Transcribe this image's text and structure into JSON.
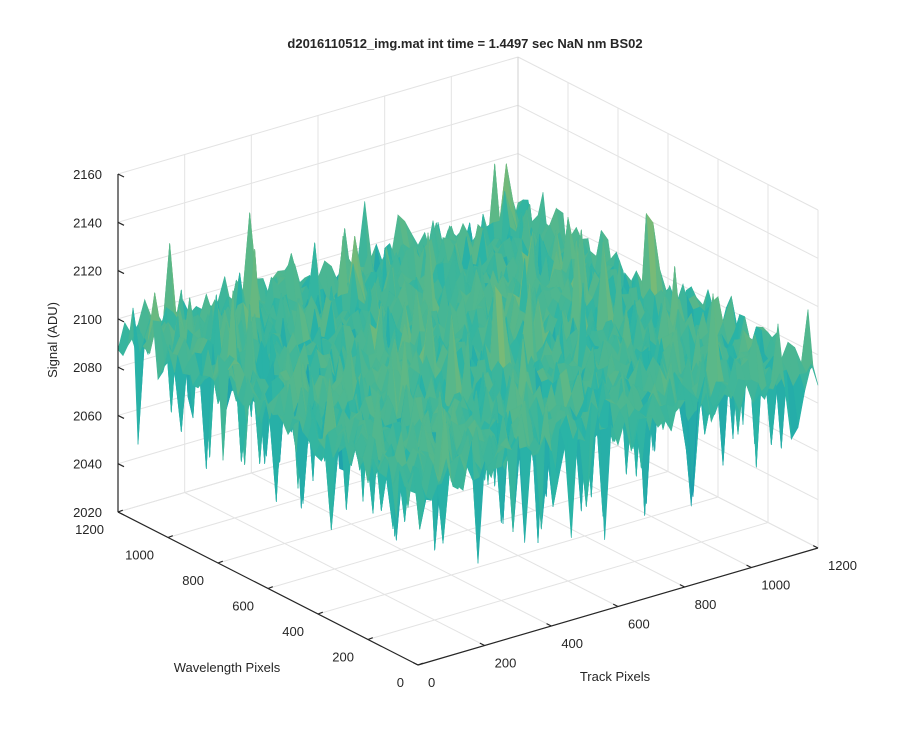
{
  "chart_data": {
    "type": "surface",
    "title": "d2016110512_img.mat int time = 1.4497 sec  NaN nm BS02",
    "xlabel": "Track Pixels",
    "ylabel": "Wavelength Pixels",
    "zlabel": "Signal (ADU)",
    "xlim": [
      0,
      1200
    ],
    "ylim": [
      0,
      1200
    ],
    "zlim": [
      2020,
      2160
    ],
    "x_ticks": [
      "0",
      "200",
      "400",
      "600",
      "800",
      "1000",
      "1200"
    ],
    "y_ticks": [
      "0",
      "200",
      "400",
      "600",
      "800",
      "1000",
      "1200"
    ],
    "z_ticks": [
      "2020",
      "2040",
      "2060",
      "2080",
      "2100",
      "2120",
      "2140",
      "2160"
    ],
    "grid": true,
    "colormap": "parula",
    "surface_summary": {
      "typical_signal_range": [
        2060,
        2120
      ],
      "mean_signal": 2095,
      "max_signal": 2145,
      "min_signal": 2030
    },
    "colors": {
      "low": "#0072bd",
      "mid": "#2ab4a6",
      "high": "#e8c232"
    }
  }
}
